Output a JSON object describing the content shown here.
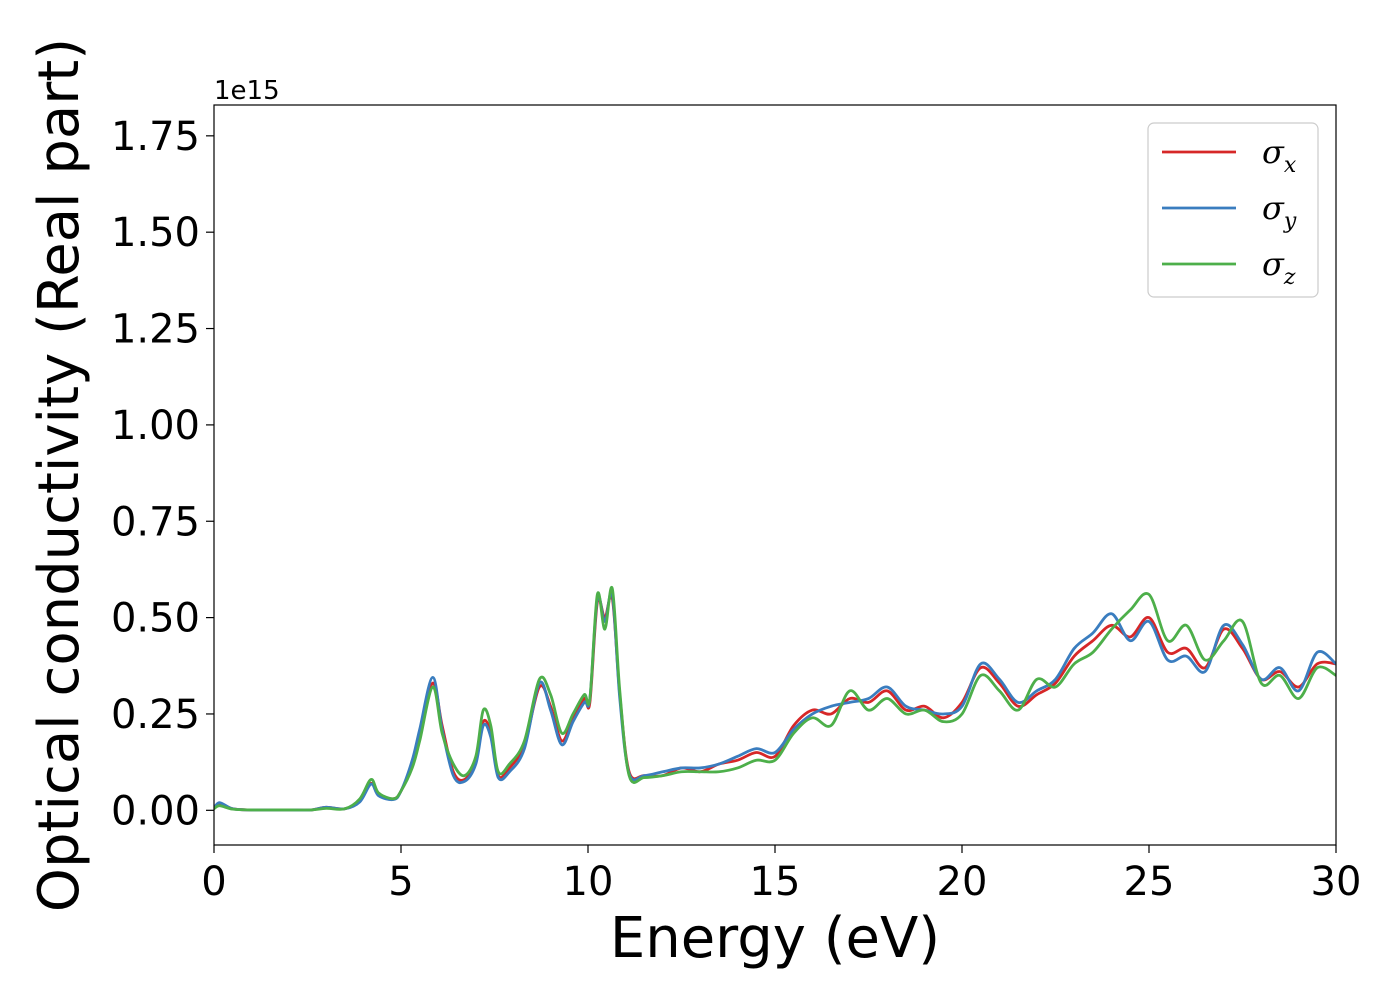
{
  "chart_data": {
    "type": "line",
    "title": "",
    "xlabel": "Energy (eV)",
    "ylabel": "Optical conductivity (Real part)",
    "y_offset_text": "1e15",
    "xlim": [
      0,
      30
    ],
    "ylim": [
      -0.09,
      1.83
    ],
    "xticks": [
      "0",
      "5",
      "10",
      "15",
      "20",
      "25",
      "30"
    ],
    "yticks": [
      "0.00",
      "0.25",
      "0.50",
      "0.75",
      "1.00",
      "1.25",
      "1.50",
      "1.75"
    ],
    "grid": false,
    "legend_position": "top-right",
    "x": [
      0,
      0.15,
      0.5,
      1,
      2,
      2.6,
      3,
      3.5,
      3.9,
      4.2,
      4.4,
      4.8,
      5,
      5.3,
      5.5,
      5.85,
      6.1,
      6.4,
      6.7,
      7,
      7.2,
      7.4,
      7.6,
      7.9,
      8.3,
      8.7,
      9,
      9.3,
      9.6,
      9.9,
      10.05,
      10.25,
      10.45,
      10.65,
      10.85,
      11.1,
      11.5,
      12,
      12.5,
      13,
      13.5,
      14,
      14.5,
      15,
      15.5,
      16,
      16.5,
      17,
      17.5,
      18,
      18.5,
      19,
      19.5,
      20,
      20.5,
      21,
      21.5,
      22,
      22.5,
      23,
      23.5,
      24,
      24.5,
      25,
      25.5,
      26,
      26.5,
      27,
      27.5,
      28,
      28.5,
      29,
      29.5,
      30
    ],
    "series": [
      {
        "name": "σx",
        "legend_symbol": "σ",
        "legend_sub": "x",
        "color": "#d62728",
        "values": [
          0.005,
          0.018,
          0.004,
          0.001,
          0.001,
          0.001,
          0.008,
          0.004,
          0.025,
          0.07,
          0.04,
          0.03,
          0.05,
          0.12,
          0.2,
          0.33,
          0.22,
          0.1,
          0.08,
          0.13,
          0.23,
          0.2,
          0.09,
          0.11,
          0.17,
          0.32,
          0.27,
          0.18,
          0.24,
          0.29,
          0.28,
          0.54,
          0.5,
          0.55,
          0.3,
          0.1,
          0.09,
          0.09,
          0.11,
          0.1,
          0.12,
          0.13,
          0.15,
          0.14,
          0.22,
          0.26,
          0.25,
          0.29,
          0.28,
          0.31,
          0.26,
          0.27,
          0.24,
          0.28,
          0.37,
          0.33,
          0.27,
          0.3,
          0.33,
          0.4,
          0.44,
          0.48,
          0.45,
          0.5,
          0.41,
          0.42,
          0.37,
          0.47,
          0.42,
          0.34,
          0.36,
          0.32,
          0.38,
          0.38
        ]
      },
      {
        "name": "σy",
        "legend_symbol": "σ",
        "legend_sub": "y",
        "color": "#3a7dbf",
        "values": [
          0.005,
          0.02,
          0.004,
          0.001,
          0.001,
          0.001,
          0.008,
          0.004,
          0.022,
          0.068,
          0.038,
          0.028,
          0.05,
          0.13,
          0.21,
          0.345,
          0.21,
          0.09,
          0.075,
          0.12,
          0.22,
          0.19,
          0.085,
          0.1,
          0.16,
          0.33,
          0.26,
          0.17,
          0.23,
          0.28,
          0.29,
          0.55,
          0.49,
          0.56,
          0.29,
          0.095,
          0.09,
          0.1,
          0.11,
          0.11,
          0.12,
          0.14,
          0.16,
          0.15,
          0.21,
          0.25,
          0.27,
          0.28,
          0.29,
          0.32,
          0.27,
          0.26,
          0.25,
          0.27,
          0.38,
          0.34,
          0.28,
          0.31,
          0.34,
          0.42,
          0.46,
          0.51,
          0.44,
          0.49,
          0.39,
          0.4,
          0.36,
          0.48,
          0.43,
          0.34,
          0.37,
          0.31,
          0.41,
          0.38
        ]
      },
      {
        "name": "σz",
        "legend_symbol": "σ",
        "legend_sub": "z",
        "color": "#4daf4a",
        "values": [
          0.004,
          0.012,
          0.003,
          0.001,
          0.001,
          0.001,
          0.005,
          0.004,
          0.03,
          0.08,
          0.045,
          0.03,
          0.05,
          0.11,
          0.18,
          0.32,
          0.2,
          0.12,
          0.09,
          0.14,
          0.26,
          0.22,
          0.1,
          0.12,
          0.18,
          0.34,
          0.3,
          0.2,
          0.25,
          0.3,
          0.29,
          0.56,
          0.47,
          0.575,
          0.31,
          0.09,
          0.085,
          0.09,
          0.1,
          0.1,
          0.1,
          0.11,
          0.13,
          0.13,
          0.2,
          0.24,
          0.22,
          0.31,
          0.26,
          0.29,
          0.25,
          0.26,
          0.23,
          0.25,
          0.35,
          0.31,
          0.26,
          0.34,
          0.32,
          0.38,
          0.41,
          0.47,
          0.52,
          0.56,
          0.44,
          0.48,
          0.39,
          0.44,
          0.49,
          0.33,
          0.35,
          0.29,
          0.37,
          0.35
        ]
      }
    ]
  }
}
